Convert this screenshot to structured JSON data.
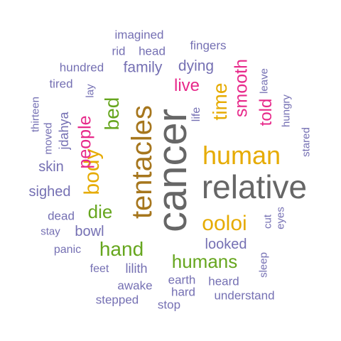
{
  "palette": {
    "purple": "#7570b3",
    "gray": "#666666",
    "gold": "#e6ab02",
    "brown": "#a6761d",
    "green": "#66a61e",
    "magenta": "#e7298a"
  },
  "words": [
    {
      "text": "cancer",
      "color": "gray",
      "rotated": true
    },
    {
      "text": "relative",
      "color": "gray",
      "rotated": false
    },
    {
      "text": "tentacles",
      "color": "brown",
      "rotated": true
    },
    {
      "text": "human",
      "color": "gold",
      "rotated": false
    },
    {
      "text": "body",
      "color": "gold",
      "rotated": true
    },
    {
      "text": "bed",
      "color": "green",
      "rotated": true
    },
    {
      "text": "ooloi",
      "color": "gold",
      "rotated": false
    },
    {
      "text": "time",
      "color": "gold",
      "rotated": true
    },
    {
      "text": "people",
      "color": "magenta",
      "rotated": true
    },
    {
      "text": "hand",
      "color": "green",
      "rotated": false
    },
    {
      "text": "humans",
      "color": "green",
      "rotated": false
    },
    {
      "text": "die",
      "color": "green",
      "rotated": false
    },
    {
      "text": "smooth",
      "color": "magenta",
      "rotated": true
    },
    {
      "text": "told",
      "color": "magenta",
      "rotated": true
    },
    {
      "text": "live",
      "color": "magenta",
      "rotated": false
    },
    {
      "text": "family",
      "color": "purple",
      "rotated": false
    },
    {
      "text": "dying",
      "color": "purple",
      "rotated": false
    },
    {
      "text": "looked",
      "color": "purple",
      "rotated": false
    },
    {
      "text": "bowl",
      "color": "purple",
      "rotated": false
    },
    {
      "text": "sighed",
      "color": "purple",
      "rotated": false
    },
    {
      "text": "skin",
      "color": "purple",
      "rotated": false
    },
    {
      "text": "lilith",
      "color": "purple",
      "rotated": false
    },
    {
      "text": "jdahya",
      "color": "purple",
      "rotated": true
    },
    {
      "text": "life",
      "color": "purple",
      "rotated": true
    },
    {
      "text": "imagined",
      "color": "purple",
      "rotated": false
    },
    {
      "text": "fingers",
      "color": "purple",
      "rotated": false
    },
    {
      "text": "rid",
      "color": "purple",
      "rotated": false
    },
    {
      "text": "head",
      "color": "purple",
      "rotated": false
    },
    {
      "text": "hundred",
      "color": "purple",
      "rotated": false
    },
    {
      "text": "tired",
      "color": "purple",
      "rotated": false
    },
    {
      "text": "lay",
      "color": "purple",
      "rotated": true
    },
    {
      "text": "thirteen",
      "color": "purple",
      "rotated": true
    },
    {
      "text": "moved",
      "color": "purple",
      "rotated": true
    },
    {
      "text": "leave",
      "color": "purple",
      "rotated": true
    },
    {
      "text": "hungry",
      "color": "purple",
      "rotated": true
    },
    {
      "text": "stared",
      "color": "purple",
      "rotated": true
    },
    {
      "text": "dead",
      "color": "purple",
      "rotated": false
    },
    {
      "text": "stay",
      "color": "purple",
      "rotated": false
    },
    {
      "text": "panic",
      "color": "purple",
      "rotated": false
    },
    {
      "text": "feet",
      "color": "purple",
      "rotated": false
    },
    {
      "text": "awake",
      "color": "purple",
      "rotated": false
    },
    {
      "text": "earth",
      "color": "purple",
      "rotated": false
    },
    {
      "text": "heard",
      "color": "purple",
      "rotated": false
    },
    {
      "text": "hard",
      "color": "purple",
      "rotated": false
    },
    {
      "text": "understand",
      "color": "purple",
      "rotated": false
    },
    {
      "text": "stepped",
      "color": "purple",
      "rotated": false
    },
    {
      "text": "stop",
      "color": "purple",
      "rotated": false
    },
    {
      "text": "sleep",
      "color": "purple",
      "rotated": true
    },
    {
      "text": "cut",
      "color": "purple",
      "rotated": true
    },
    {
      "text": "eyes",
      "color": "purple",
      "rotated": true
    }
  ]
}
